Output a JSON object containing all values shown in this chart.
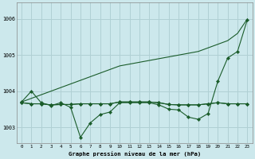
{
  "background_color": "#cce8ec",
  "grid_color": "#b0d0d4",
  "dark_green": "#1a5c2a",
  "xlabel": "Graphe pression niveau de la mer (hPa)",
  "ylim": [
    1002.55,
    1006.45
  ],
  "yticks": [
    1003,
    1004,
    1005,
    1006
  ],
  "xlim": [
    -0.5,
    23.5
  ],
  "xticks": [
    0,
    1,
    2,
    3,
    4,
    5,
    6,
    7,
    8,
    9,
    10,
    11,
    12,
    13,
    14,
    15,
    16,
    17,
    18,
    19,
    20,
    21,
    22,
    23
  ],
  "line_dip": [
    1003.7,
    1004.0,
    1003.68,
    1003.6,
    1003.68,
    1003.55,
    1002.72,
    1003.12,
    1003.35,
    1003.42,
    1003.68,
    1003.68,
    1003.68,
    1003.68,
    1003.62,
    1003.5,
    1003.48,
    1003.28,
    1003.22,
    1003.38,
    1004.28,
    1004.92,
    1005.1,
    1005.98
  ],
  "line_rising": [
    1003.7,
    1003.8,
    1003.9,
    1004.0,
    1004.1,
    1004.2,
    1004.3,
    1004.4,
    1004.5,
    1004.6,
    1004.7,
    1004.75,
    1004.8,
    1004.85,
    1004.9,
    1004.95,
    1005.0,
    1005.05,
    1005.1,
    1005.2,
    1005.3,
    1005.4,
    1005.6,
    1006.0
  ],
  "line_flat1": [
    1003.68,
    1003.65,
    1003.65,
    1003.62,
    1003.63,
    1003.63,
    1003.65,
    1003.65,
    1003.65,
    1003.65,
    1003.7,
    1003.7,
    1003.7,
    1003.7,
    1003.68,
    1003.63,
    1003.62,
    1003.62,
    1003.62,
    1003.65,
    1003.68,
    1003.65,
    1003.65,
    1003.65
  ],
  "line_flat2": [
    1003.68,
    1003.65,
    1003.65,
    1003.62,
    1003.63,
    1003.63,
    1003.65,
    1003.65,
    1003.65,
    1003.65,
    1003.7,
    1003.7,
    1003.7,
    1003.7,
    1003.68,
    1003.63,
    1003.62,
    1003.62,
    1003.62,
    1003.65,
    1003.68,
    1003.65,
    1003.65,
    1003.65
  ],
  "markersize": 2.2,
  "linewidth": 0.8
}
